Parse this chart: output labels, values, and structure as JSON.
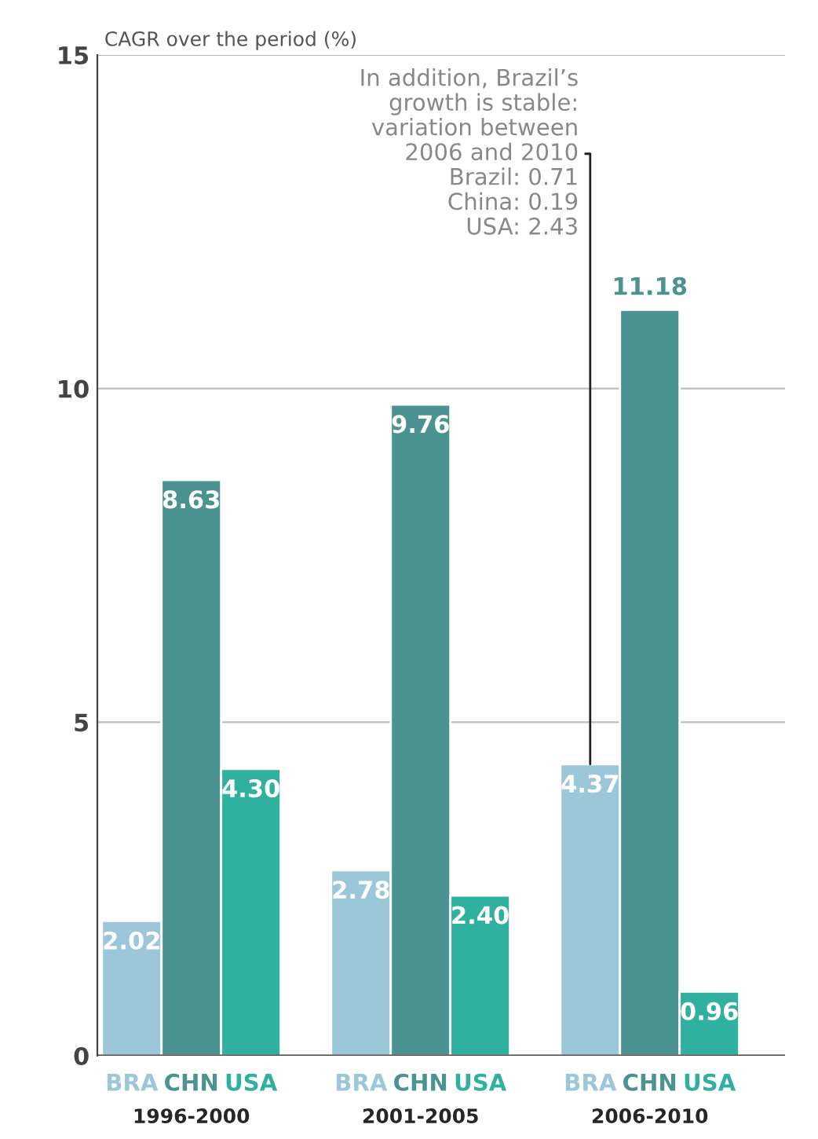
{
  "chart_data": {
    "type": "bar",
    "ylabel": "CAGR over the period (%)",
    "categories": [
      "1996-2000",
      "2001-2005",
      "2006-2010"
    ],
    "series": [
      {
        "name": "BRA",
        "color": "#9bc7d8",
        "values": [
          2.02,
          2.78,
          4.37
        ]
      },
      {
        "name": "CHN",
        "color": "#4a9390",
        "values": [
          8.63,
          9.76,
          11.18
        ]
      },
      {
        "name": "USA",
        "color": "#30b09e",
        "values": [
          4.3,
          2.4,
          0.96
        ]
      }
    ],
    "value_labels": [
      [
        "2.02",
        "2.78",
        "4.37"
      ],
      [
        "8.63",
        "9.76",
        "11.18"
      ],
      [
        "4.30",
        "2.40",
        "0.96"
      ]
    ],
    "ylim": [
      0,
      15
    ],
    "yticks": [
      0,
      5,
      10,
      15
    ],
    "grid": "y",
    "annotations": [
      "In addition, Brazil’s\ngrowth is stable:\nvariation between\n2006 and 2010\nBrazil: 0.71\nChina: 0.19\nUSA: 2.43"
    ]
  }
}
